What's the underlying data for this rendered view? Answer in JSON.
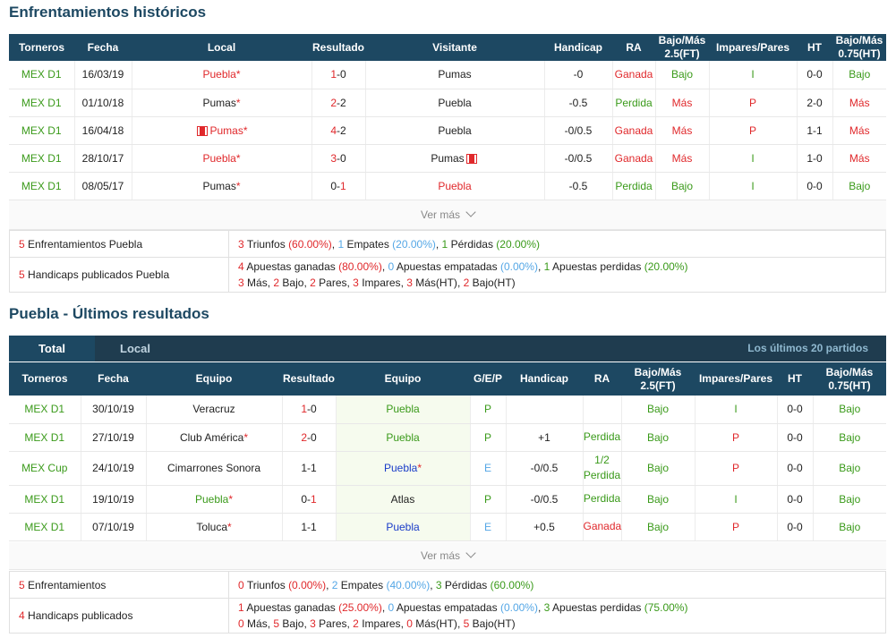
{
  "h2h": {
    "title": "Enfrentamientos históricos",
    "headers": [
      "Torneros",
      "Fecha",
      "Local",
      "Resultado",
      "Visitante",
      "Handicap",
      "RA",
      "Bajo/Más\n2.5(FT)",
      "Impares/Pares",
      "HT",
      "Bajo/Más\n0.75(HT)"
    ],
    "rows": [
      {
        "liga": "MEX D1",
        "fecha": "16/03/19",
        "local": "Puebla",
        "res_a": "1",
        "res_b": "0",
        "visit": "Pumas",
        "hcp": "-0",
        "ra": "Ganada",
        "bm": "Bajo",
        "ip": "I",
        "ht": "0-0",
        "bm2": "Bajo"
      },
      {
        "liga": "MEX D1",
        "fecha": "01/10/18",
        "local": "Pumas",
        "res_a": "2",
        "res_b": "2",
        "visit": "Puebla",
        "hcp": "-0.5",
        "ra": "Perdida",
        "bm": "Más",
        "ip": "P",
        "ht": "2-0",
        "bm2": "Más"
      },
      {
        "liga": "MEX D1",
        "fecha": "16/04/18",
        "local": "Pumas",
        "res_a": "4",
        "res_b": "2",
        "visit": "Puebla",
        "hcp": "-0/0.5",
        "ra": "Ganada",
        "bm": "Más",
        "ip": "P",
        "ht": "1-1",
        "bm2": "Más"
      },
      {
        "liga": "MEX D1",
        "fecha": "28/10/17",
        "local": "Puebla",
        "res_a": "3",
        "res_b": "0",
        "visit": "Pumas",
        "hcp": "-0/0.5",
        "ra": "Ganada",
        "bm": "Más",
        "ip": "I",
        "ht": "1-0",
        "bm2": "Más"
      },
      {
        "liga": "MEX D1",
        "fecha": "08/05/17",
        "local": "Pumas",
        "res_a": "0",
        "res_b": "1",
        "visit": "Puebla",
        "hcp": "-0.5",
        "ra": "Perdida",
        "bm": "Bajo",
        "ip": "I",
        "ht": "0-0",
        "bm2": "Bajo"
      }
    ],
    "vermas": "Ver más",
    "sum1": {
      "n": "5",
      "label": "Enfrentamientos Puebla",
      "t_n": "3",
      "t_l": "Triunfos",
      "t_p": "(60.00%)",
      "e_n": "1",
      "e_l": "Empates",
      "e_p": "(20.00%)",
      "p_n": "1",
      "p_l": "Pérdidas",
      "p_p": "(20.00%)"
    },
    "sum2": {
      "n": "5",
      "label": "Handicaps publicados Puebla",
      "g_n": "4",
      "g_l": "Apuestas ganadas",
      "g_p": "(80.00%)",
      "e_n": "0",
      "e_l": "Apuestas empatadas",
      "e_p": "(0.00%)",
      "p_n": "1",
      "p_l": "Apuestas perdidas",
      "p_p": "(20.00%)",
      "line2": [
        {
          "n": "3",
          "l": "Más"
        },
        {
          "n": "2",
          "l": "Bajo"
        },
        {
          "n": "2",
          "l": "Pares"
        },
        {
          "n": "3",
          "l": "Impares"
        },
        {
          "n": "3",
          "l": "Más(HT)"
        },
        {
          "n": "2",
          "l": "Bajo(HT)"
        }
      ]
    }
  },
  "recent": {
    "title": "Puebla - Últimos resultados",
    "tabs": [
      "Total",
      "Local"
    ],
    "tab_right": "Los últimos 20 partidos",
    "headers": [
      "Torneros",
      "Fecha",
      "Equipo",
      "Resultado",
      "Equipo",
      "G/E/P",
      "Handicap",
      "RA",
      "Bajo/Más\n2.5(FT)",
      "Impares/Pares",
      "HT",
      "Bajo/Más\n0.75(HT)"
    ],
    "rows": [
      {
        "liga": "MEX D1",
        "fecha": "30/10/19",
        "home": "Veracruz",
        "res_a": "1",
        "res_b": "0",
        "away": "Puebla",
        "gep": "P",
        "hcp": "",
        "ra": "",
        "bm": "Bajo",
        "ip": "I",
        "ht": "0-0",
        "bm2": "Bajo"
      },
      {
        "liga": "MEX D1",
        "fecha": "27/10/19",
        "home": "Club América",
        "res_a": "2",
        "res_b": "0",
        "away": "Puebla",
        "gep": "P",
        "hcp": "+1",
        "ra": "Perdida",
        "bm": "Bajo",
        "ip": "P",
        "ht": "0-0",
        "bm2": "Bajo"
      },
      {
        "liga": "MEX Cup",
        "fecha": "24/10/19",
        "home": "Cimarrones Sonora",
        "res_a": "1",
        "res_b": "1",
        "away": "Puebla",
        "gep": "E",
        "hcp": "-0/0.5",
        "ra": "1/2\nPerdida",
        "bm": "Bajo",
        "ip": "P",
        "ht": "0-0",
        "bm2": "Bajo"
      },
      {
        "liga": "MEX D1",
        "fecha": "19/10/19",
        "home": "Puebla",
        "res_a": "0",
        "res_b": "1",
        "away": "Atlas",
        "gep": "P",
        "hcp": "-0/0.5",
        "ra": "Perdida",
        "bm": "Bajo",
        "ip": "I",
        "ht": "0-0",
        "bm2": "Bajo"
      },
      {
        "liga": "MEX D1",
        "fecha": "07/10/19",
        "home": "Toluca",
        "res_a": "1",
        "res_b": "1",
        "away": "Puebla",
        "gep": "E",
        "hcp": "+0.5",
        "ra": "Ganada",
        "bm": "Bajo",
        "ip": "P",
        "ht": "0-0",
        "bm2": "Bajo"
      }
    ],
    "vermas": "Ver más",
    "sum1": {
      "n": "5",
      "label": "Enfrentamientos",
      "t_n": "0",
      "t_l": "Triunfos",
      "t_p": "(0.00%)",
      "e_n": "2",
      "e_l": "Empates",
      "e_p": "(40.00%)",
      "p_n": "3",
      "p_l": "Pérdidas",
      "p_p": "(60.00%)"
    },
    "sum2": {
      "n": "4",
      "label": "Handicaps publicados",
      "g_n": "1",
      "g_l": "Apuestas ganadas",
      "g_p": "(25.00%)",
      "e_n": "0",
      "e_l": "Apuestas empatadas",
      "e_p": "(0.00%)",
      "p_n": "3",
      "p_l": "Apuestas perdidas",
      "p_p": "(75.00%)",
      "line2": [
        {
          "n": "0",
          "l": "Más"
        },
        {
          "n": "5",
          "l": "Bajo"
        },
        {
          "n": "3",
          "l": "Pares"
        },
        {
          "n": "2",
          "l": "Impares"
        },
        {
          "n": "0",
          "l": "Más(HT)"
        },
        {
          "n": "5",
          "l": "Bajo(HT)"
        }
      ]
    }
  }
}
